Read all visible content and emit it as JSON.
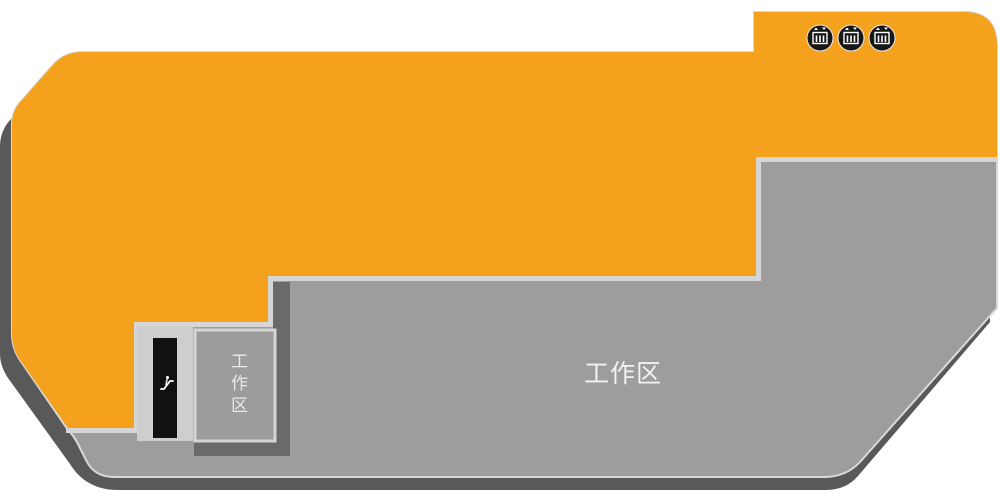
{
  "floor_map": {
    "zones": {
      "corridor": {
        "color": "#f4a11d"
      },
      "work_area_main": {
        "label": "工作区",
        "color": "#9d9d9d"
      },
      "work_area_small": {
        "label": "工作区",
        "color": "#9c9c9c"
      }
    },
    "facilities": [
      {
        "icon": "elevator-icon"
      },
      {
        "icon": "elevator-icon"
      },
      {
        "icon": "elevator-icon"
      },
      {
        "icon": "escalator-icon"
      }
    ]
  },
  "colors": {
    "shadow": "#595959",
    "zone_border": "#d6d6d6",
    "wall_shadow": "#6a6a6a",
    "escalator_frame": "#cecece",
    "escalator": "#111111",
    "icon_background": "#171717",
    "icon_foreground": "#ffffff",
    "label": "#f2f2f2"
  }
}
